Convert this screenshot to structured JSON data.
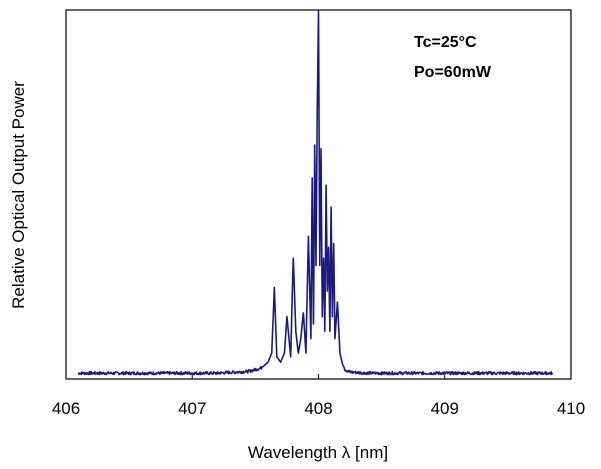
{
  "chart_data": {
    "type": "line",
    "xlabel": "Wavelength  λ [nm]",
    "ylabel": "Relative Optical Output Power",
    "xlim": [
      406,
      410
    ],
    "ylim": [
      0,
      1
    ],
    "x_ticks": [
      "406",
      "407",
      "408",
      "409",
      "410"
    ],
    "y_ticks_labeled": false,
    "grid": false,
    "legend": "none",
    "annotations": [
      "Tc=25°C",
      "Po=60mW"
    ],
    "series": [
      {
        "color": "#1a1a80",
        "x": [
          406.1,
          407.2,
          407.45,
          407.5,
          407.55,
          407.6,
          407.63,
          407.65,
          407.67,
          407.7,
          407.73,
          407.75,
          407.78,
          407.8,
          407.82,
          407.84,
          407.86,
          407.88,
          407.9,
          407.92,
          407.94,
          407.95,
          407.96,
          407.97,
          407.98,
          407.99,
          408.0,
          408.01,
          408.02,
          408.03,
          408.04,
          408.05,
          408.06,
          408.07,
          408.08,
          408.09,
          408.1,
          408.11,
          408.12,
          408.13,
          408.15,
          408.17,
          408.19,
          408.21,
          408.25,
          408.4,
          409.0,
          409.85
        ],
        "y": [
          0.005,
          0.005,
          0.01,
          0.015,
          0.02,
          0.035,
          0.06,
          0.24,
          0.05,
          0.035,
          0.06,
          0.16,
          0.05,
          0.32,
          0.12,
          0.06,
          0.1,
          0.17,
          0.06,
          0.38,
          0.1,
          0.54,
          0.14,
          0.63,
          0.3,
          0.72,
          1.0,
          0.3,
          0.62,
          0.16,
          0.32,
          0.12,
          0.52,
          0.23,
          0.35,
          0.12,
          0.46,
          0.16,
          0.36,
          0.1,
          0.2,
          0.06,
          0.03,
          0.015,
          0.008,
          0.005,
          0.005,
          0.005
        ]
      }
    ]
  }
}
